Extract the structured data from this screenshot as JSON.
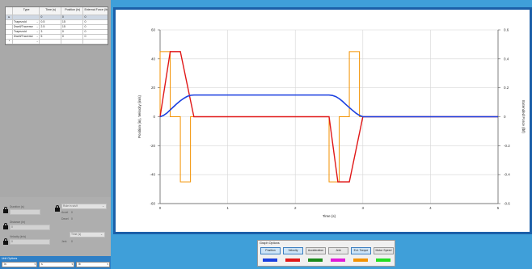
{
  "segments_table": {
    "headers": [
      "Type",
      "Time (s)",
      "Position (in)",
      "External Force (lb)"
    ],
    "rows": [
      {
        "type": "",
        "time": "0",
        "position": "0",
        "force": "0",
        "selected": true,
        "marker": "▸"
      },
      {
        "type": "Trapezoid",
        "time": "0.5",
        "position": "15",
        "force": "0"
      },
      {
        "type": "Dwell/Traverse",
        "time": "2.5",
        "position": "15",
        "force": "0"
      },
      {
        "type": "Trapezoid",
        "time": "3",
        "position": "0",
        "force": "0"
      },
      {
        "type": "Dwell/Traverse",
        "time": "5",
        "position": "0",
        "force": "0"
      }
    ],
    "new_row_marker": "*"
  },
  "segment_params": {
    "duration_label": "Duration (s)",
    "duration_value": "",
    "rule_select": "Rule in s/s/f",
    "accel_label": "Accel",
    "accel_value": "0",
    "decel_label": "Decel",
    "decel_value": "0",
    "distance_label": "Distance (in)",
    "distance_value": "0",
    "velocity_label": "Velocity (in/s)",
    "velocity_value": "0",
    "time_select": "Time (s)",
    "jerk_label": "Jerk",
    "jerk_value": "0"
  },
  "unit_options": {
    "label": "Unit Options",
    "selects": [
      "in",
      "s",
      "lb"
    ]
  },
  "graph_options": {
    "label": "Graph Options",
    "buttons": [
      {
        "label": "Position",
        "active": true,
        "color": "#1a3fe0"
      },
      {
        "label": "Velocity",
        "active": true,
        "color": "#e01818"
      },
      {
        "label": "Acceleration",
        "active": false,
        "color": "#1a8a1a"
      },
      {
        "label": "Jerk",
        "active": false,
        "color": "#e01ad8"
      },
      {
        "label": "Ext. Torque",
        "active": true,
        "color": "#f39200"
      },
      {
        "label": "Motor Speed",
        "active": false,
        "color": "#22dd22"
      }
    ]
  },
  "chart_data": {
    "type": "line",
    "xlabel": "Time (s)",
    "ylabel": "Position (in), Velocity (in/s)",
    "y2label": "Extended Force (lbf)",
    "xlim": [
      0,
      5
    ],
    "ylim": [
      -60,
      60
    ],
    "y2lim": [
      -0.6,
      0.6
    ],
    "x_ticks": [
      "0",
      "1",
      "2",
      "3",
      "4",
      "5"
    ],
    "y_ticks": [
      "60",
      "40",
      "20",
      "0",
      "-20",
      "-40",
      "-60"
    ],
    "y2_ticks": [
      "0.6",
      "0.4",
      "0.2",
      "0",
      "-0.2",
      "-0.4",
      "-0.6"
    ],
    "grid": true,
    "series": [
      {
        "name": "Position",
        "color": "#1a3fe0",
        "axis": "left",
        "x": [
          0,
          0.05,
          0.1,
          0.15,
          0.2,
          0.25,
          0.3,
          0.35,
          0.4,
          0.45,
          0.5,
          2.5,
          2.55,
          2.6,
          2.65,
          2.7,
          2.75,
          2.8,
          2.85,
          2.9,
          2.95,
          3.0,
          5.0
        ],
        "y": [
          0,
          0.9,
          2.5,
          4.7,
          6.9,
          9.1,
          11.0,
          12.7,
          14.0,
          14.8,
          15,
          15,
          14.7,
          13.9,
          12.5,
          10.6,
          8.4,
          6.3,
          4.3,
          2.4,
          0.9,
          0,
          0
        ]
      },
      {
        "name": "Velocity",
        "color": "#e01818",
        "axis": "left",
        "x": [
          0,
          0.15,
          0.3,
          0.5,
          2.5,
          2.63,
          2.8,
          3.0,
          5.0
        ],
        "y": [
          0,
          45,
          45,
          0,
          0,
          -45,
          -45,
          0,
          0
        ]
      },
      {
        "name": "Ext. Torque",
        "color": "#f39200",
        "axis": "left",
        "x": [
          0,
          0,
          0.15,
          0.15,
          0.3,
          0.3,
          0.45,
          0.45,
          2.5,
          2.5,
          2.65,
          2.65,
          2.8,
          2.8,
          2.95,
          2.95,
          5.0
        ],
        "y": [
          0,
          45,
          45,
          0,
          0,
          -45,
          -45,
          0,
          0,
          -45,
          -45,
          0,
          0,
          45,
          45,
          0,
          0
        ]
      }
    ]
  }
}
